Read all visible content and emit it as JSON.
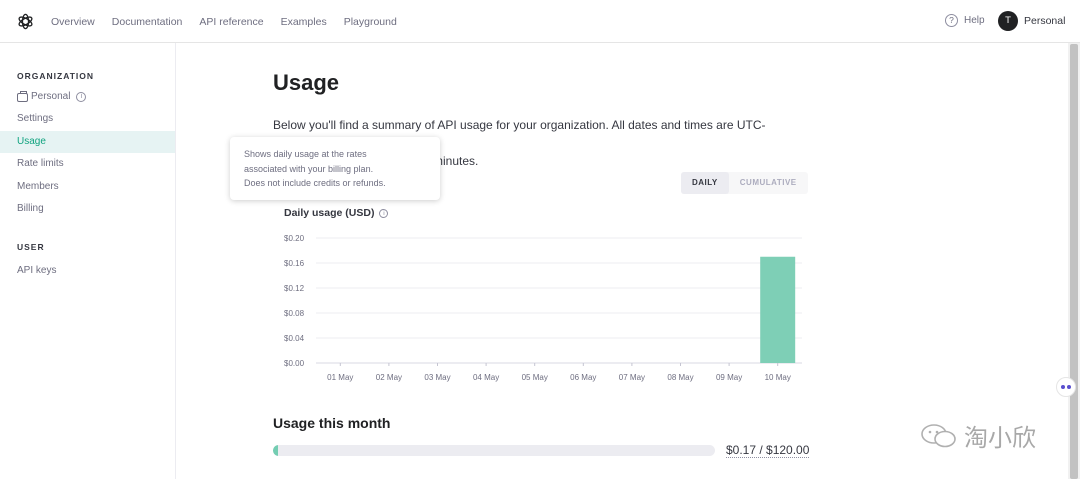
{
  "nav": {
    "links": [
      "Overview",
      "Documentation",
      "API reference",
      "Examples",
      "Playground"
    ],
    "help_label": "Help",
    "avatar_initial": "T",
    "account_label": "Personal"
  },
  "sidebar": {
    "org_heading": "ORGANIZATION",
    "org_name": "Personal",
    "org_items": [
      "Settings",
      "Usage",
      "Rate limits",
      "Members",
      "Billing"
    ],
    "active_item": "Usage",
    "user_heading": "USER",
    "user_items": [
      "API keys"
    ]
  },
  "main": {
    "title": "Usage",
    "description": "Below you'll find a summary of API usage for your organization. All dates and times are UTC-based,",
    "description_line2": "minutes.",
    "toggle": {
      "daily": "DAILY",
      "cumulative": "CUMULATIVE",
      "selected": "DAILY"
    },
    "chart_title": "Daily usage (USD)",
    "month_title": "Usage this month",
    "month_progress": 0.0014,
    "month_label": "$0.17 / $120.00"
  },
  "tooltip": {
    "lines": [
      "Shows daily usage at the rates",
      "associated with your billing plan.",
      "Does not include credits or refunds."
    ]
  },
  "chart_data": {
    "type": "bar",
    "title": "Daily usage (USD)",
    "categories": [
      "01 May",
      "02 May",
      "03 May",
      "04 May",
      "05 May",
      "06 May",
      "07 May",
      "08 May",
      "09 May",
      "10 May"
    ],
    "values": [
      0,
      0,
      0,
      0,
      0,
      0,
      0,
      0,
      0,
      0.17
    ],
    "y_ticks": [
      "$0.00",
      "$0.04",
      "$0.08",
      "$0.12",
      "$0.16",
      "$0.20"
    ],
    "ylim": [
      0,
      0.2
    ],
    "grid": true,
    "bar_color": "#7ecfb6"
  },
  "watermark": {
    "text": "淘小欣"
  },
  "colors": {
    "accent": "#10a37f",
    "active_bg": "#e6f3f3",
    "bar": "#7ecfb6"
  }
}
